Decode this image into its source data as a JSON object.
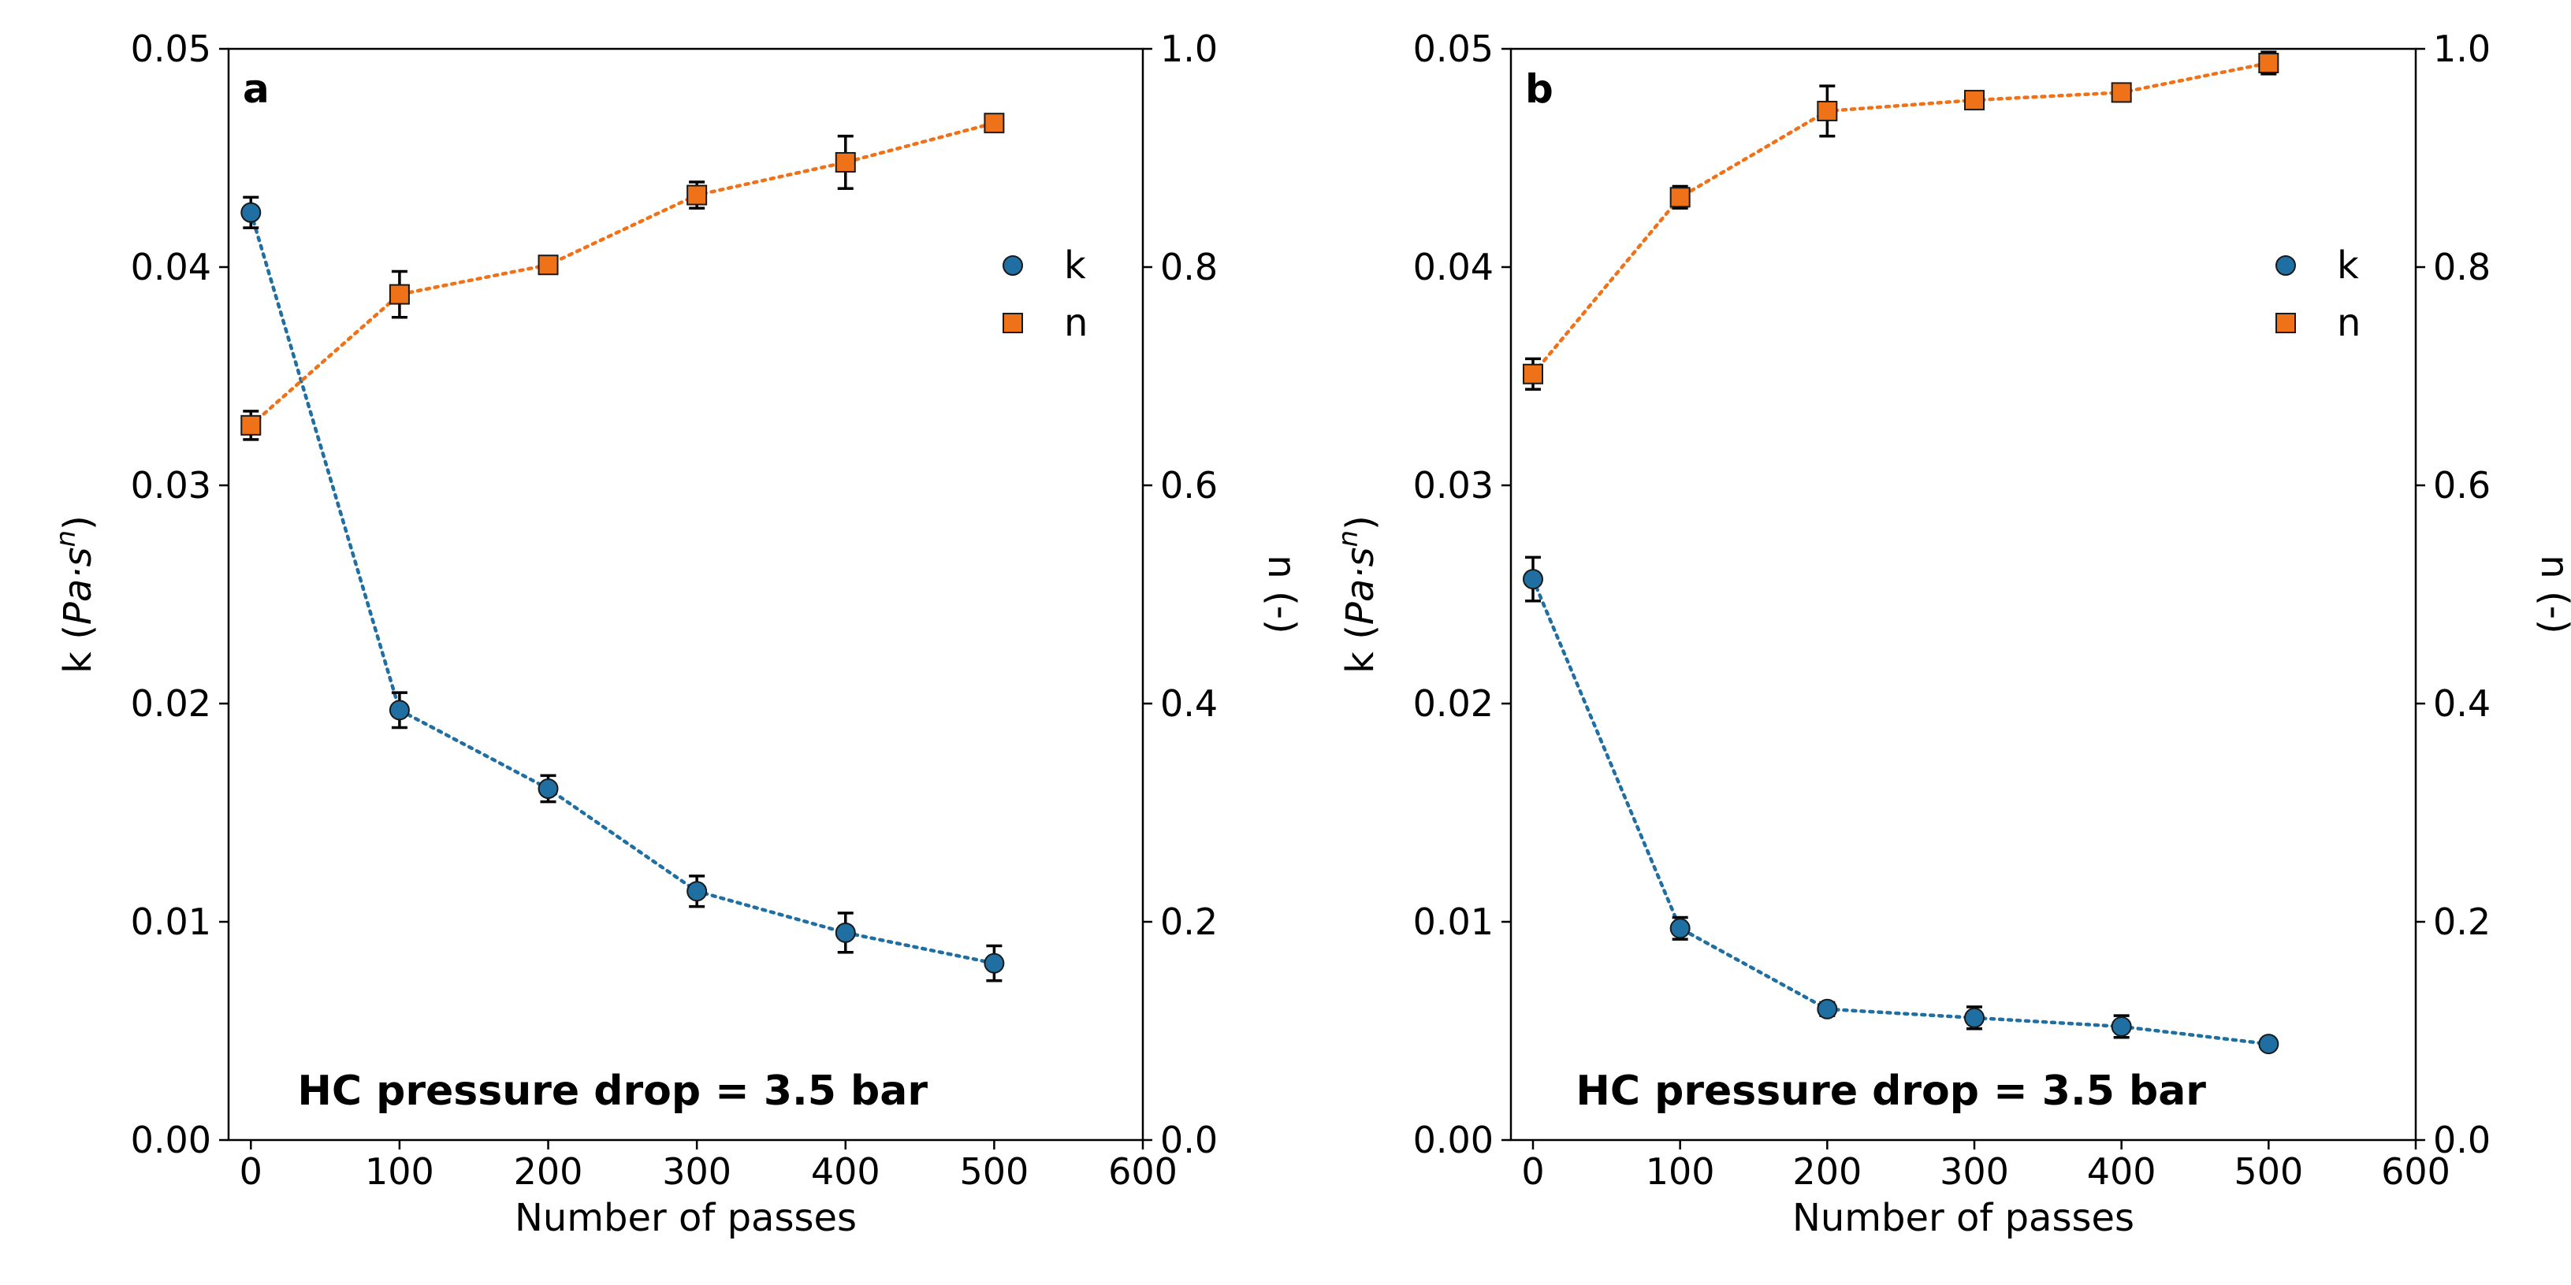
{
  "figure": {
    "background": "#ffffff",
    "colors": {
      "k": "#1f6fa3",
      "n": "#f07218",
      "errorbar": "#000000",
      "marker_edge": "#1a1a1a"
    }
  },
  "chart_data": [
    {
      "type": "scatter",
      "panel_label": "a",
      "annotation": "HC pressure drop = 3.5 bar",
      "xlabel": "Number of passes",
      "ylabel": "k (Pa·s^n)",
      "ylabel_parts": {
        "prefix": "k (",
        "italic": "Pa·s",
        "superscript": "n",
        "suffix": ")"
      },
      "y2label": "n (-)",
      "xlim": [
        -15,
        600
      ],
      "ylim": [
        0,
        0.05
      ],
      "y2lim": [
        0,
        1.0
      ],
      "xticks": [
        0,
        100,
        200,
        300,
        400,
        500,
        600
      ],
      "xtick_labels": [
        "0",
        "100",
        "200",
        "300",
        "400",
        "500",
        "600"
      ],
      "yticks": [
        0,
        0.01,
        0.02,
        0.03,
        0.04,
        0.05
      ],
      "ytick_labels": [
        "0.00",
        "0.01",
        "0.02",
        "0.03",
        "0.04",
        "0.05"
      ],
      "y2ticks": [
        0,
        0.2,
        0.4,
        0.6,
        0.8,
        1.0
      ],
      "y2tick_labels": [
        "0.0",
        "0.2",
        "0.4",
        "0.6",
        "0.8",
        "1.0"
      ],
      "legend": {
        "placement": "upper-right",
        "entries": [
          "k",
          "n"
        ]
      },
      "series": [
        {
          "name": "k",
          "axis": "left",
          "marker": "circle",
          "linestyle": "dotted",
          "x": [
            0,
            100,
            200,
            300,
            400,
            500
          ],
          "values": [
            0.0425,
            0.0197,
            0.0161,
            0.0114,
            0.0095,
            0.0081
          ],
          "errors": [
            0.0007,
            0.0008,
            0.0006,
            0.0007,
            0.0009,
            0.0008
          ]
        },
        {
          "name": "n",
          "axis": "right",
          "marker": "square",
          "linestyle": "dotted",
          "x": [
            0,
            100,
            200,
            300,
            400,
            500
          ],
          "values": [
            0.655,
            0.775,
            0.802,
            0.866,
            0.896,
            0.932
          ],
          "errors": [
            0.013,
            0.021,
            0.004,
            0.012,
            0.024,
            0.004
          ]
        }
      ]
    },
    {
      "type": "scatter",
      "panel_label": "b",
      "annotation": "HC pressure drop = 3.5 bar",
      "xlabel": "Number of passes",
      "ylabel": "k (Pa·s^n)",
      "ylabel_parts": {
        "prefix": "k (",
        "italic": "Pa·s",
        "superscript": "n",
        "suffix": ")"
      },
      "y2label": "n (-)",
      "xlim": [
        -15,
        600
      ],
      "ylim": [
        0,
        0.05
      ],
      "y2lim": [
        0,
        1.0
      ],
      "xticks": [
        0,
        100,
        200,
        300,
        400,
        500,
        600
      ],
      "xtick_labels": [
        "0",
        "100",
        "200",
        "300",
        "400",
        "500",
        "600"
      ],
      "yticks": [
        0,
        0.01,
        0.02,
        0.03,
        0.04,
        0.05
      ],
      "ytick_labels": [
        "0.00",
        "0.01",
        "0.02",
        "0.03",
        "0.04",
        "0.05"
      ],
      "y2ticks": [
        0,
        0.2,
        0.4,
        0.6,
        0.8,
        1.0
      ],
      "y2tick_labels": [
        "0.0",
        "0.2",
        "0.4",
        "0.6",
        "0.8",
        "1.0"
      ],
      "legend": {
        "placement": "upper-right",
        "entries": [
          "k",
          "n"
        ]
      },
      "series": [
        {
          "name": "k",
          "axis": "left",
          "marker": "circle",
          "linestyle": "dotted",
          "x": [
            0,
            100,
            200,
            300,
            400,
            500
          ],
          "values": [
            0.0257,
            0.0097,
            0.006,
            0.0056,
            0.0052,
            0.0044
          ],
          "errors": [
            0.001,
            0.0005,
            0.0003,
            0.0005,
            0.0005,
            0.0002
          ]
        },
        {
          "name": "n",
          "axis": "right",
          "marker": "square",
          "linestyle": "dotted",
          "x": [
            0,
            100,
            200,
            300,
            400,
            500
          ],
          "values": [
            0.702,
            0.864,
            0.943,
            0.953,
            0.96,
            0.987
          ],
          "errors": [
            0.014,
            0.01,
            0.023,
            0.006,
            0.008,
            0.01
          ]
        }
      ]
    }
  ]
}
